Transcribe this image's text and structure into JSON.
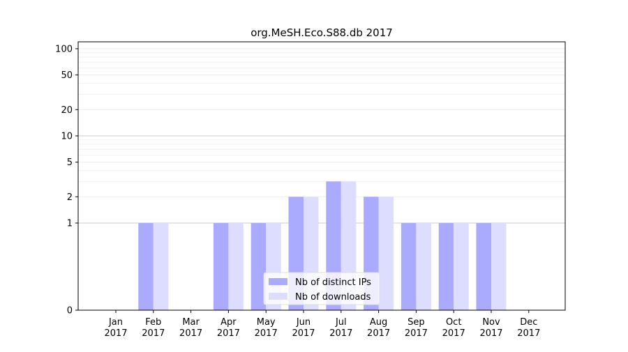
{
  "chart_data": {
    "type": "bar",
    "title": "org.MeSH.Eco.S88.db 2017",
    "xlabel": "",
    "ylabel": "",
    "y_scale": "symlog",
    "ylim": [
      0,
      120
    ],
    "y_ticks": [
      0,
      1,
      2,
      5,
      10,
      20,
      50,
      100
    ],
    "categories": [
      [
        "Jan",
        "2017"
      ],
      [
        "Feb",
        "2017"
      ],
      [
        "Mar",
        "2017"
      ],
      [
        "Apr",
        "2017"
      ],
      [
        "May",
        "2017"
      ],
      [
        "Jun",
        "2017"
      ],
      [
        "Jul",
        "2017"
      ],
      [
        "Aug",
        "2017"
      ],
      [
        "Sep",
        "2017"
      ],
      [
        "Oct",
        "2017"
      ],
      [
        "Nov",
        "2017"
      ],
      [
        "Dec",
        "2017"
      ]
    ],
    "series": [
      {
        "name": "Nb of distinct IPs",
        "color": "#aaaaff",
        "values": [
          0,
          1,
          0,
          1,
          1,
          2,
          3,
          2,
          1,
          1,
          1,
          0
        ]
      },
      {
        "name": "Nb of downloads",
        "color": "#ddddff",
        "values": [
          0,
          1,
          0,
          1,
          1,
          2,
          3,
          2,
          1,
          1,
          1,
          0
        ]
      }
    ],
    "legend_position": "lower-center",
    "grid": true
  }
}
